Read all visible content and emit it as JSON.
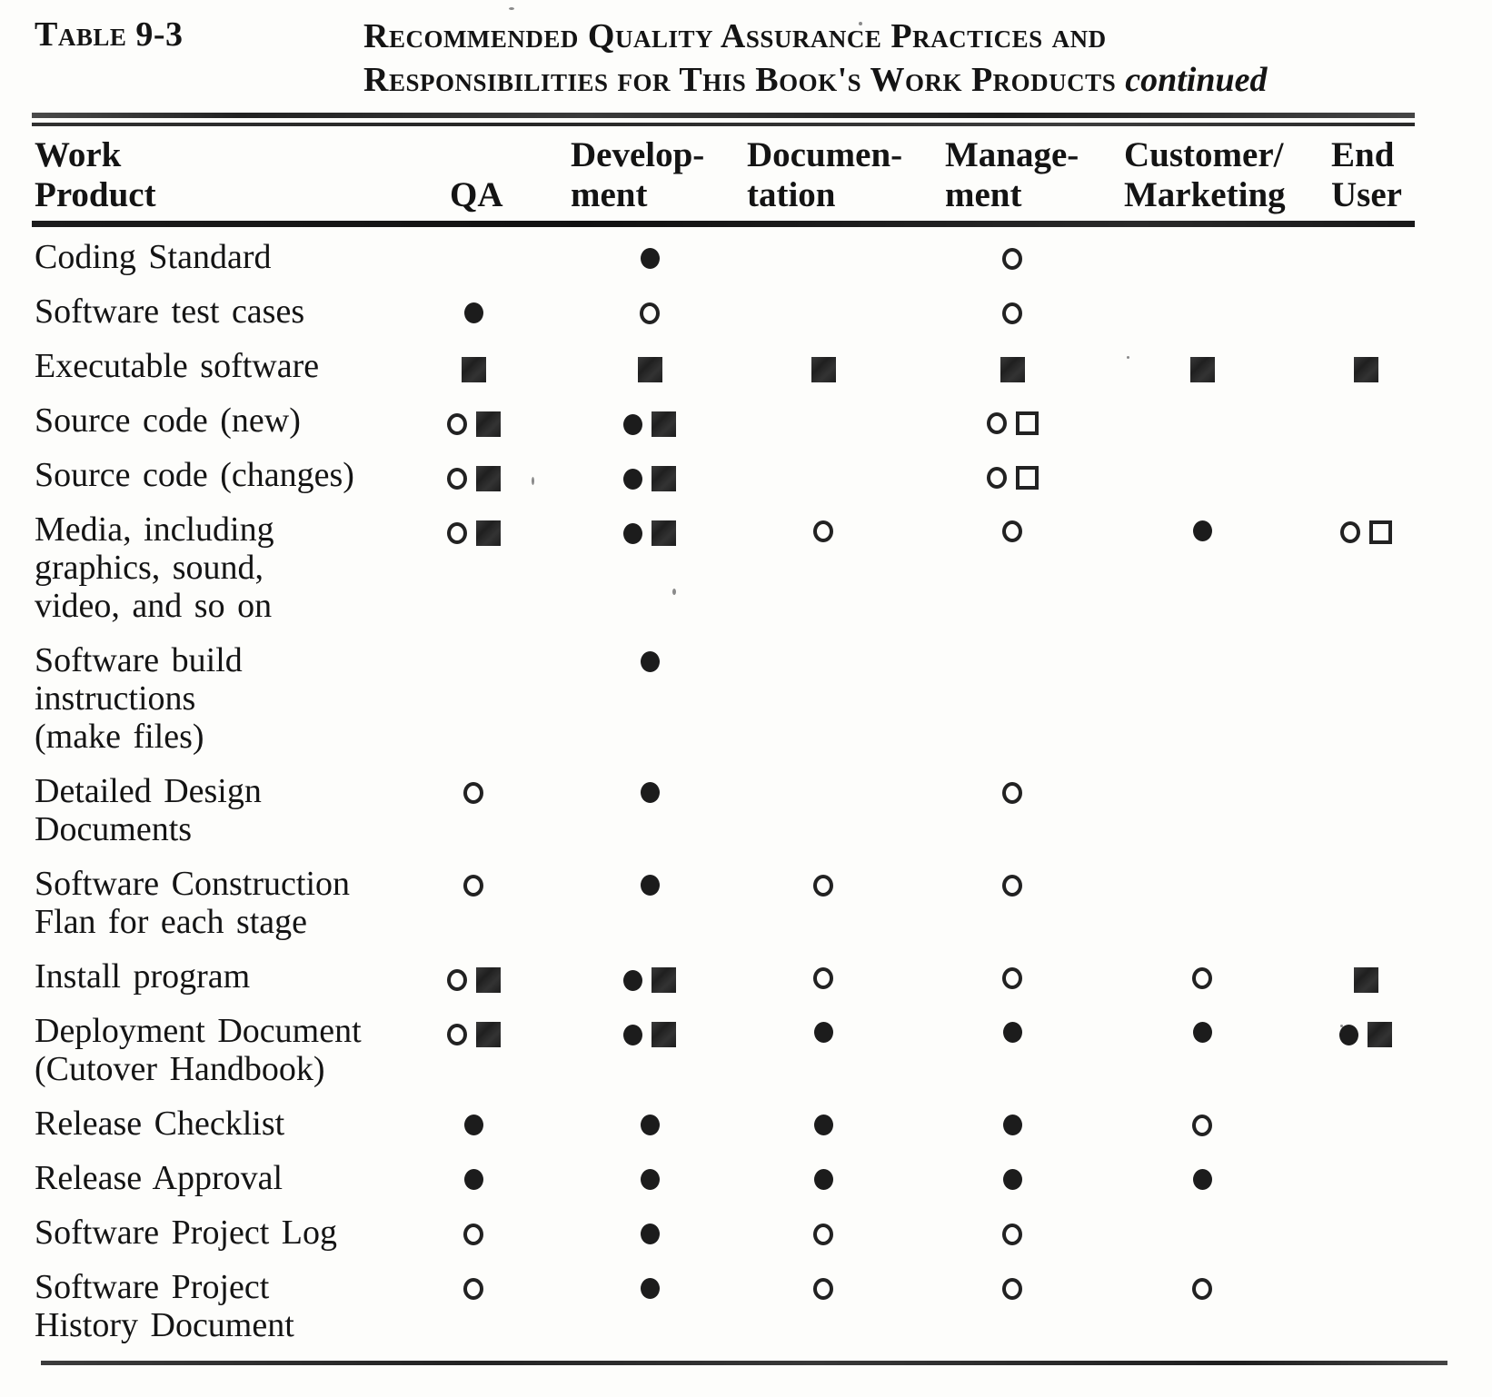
{
  "header": {
    "table_label": "Table 9-3",
    "title_line1": "Recommended Quality Assurance Practices and",
    "title_line2": "Responsibilities for This Book's Work Products",
    "continued_label": "continued"
  },
  "columns": [
    {
      "id": "work-product",
      "lines": [
        "Work",
        "Product"
      ]
    },
    {
      "id": "qa",
      "lines": [
        "QA"
      ]
    },
    {
      "id": "development",
      "lines": [
        "Develop-",
        "ment"
      ]
    },
    {
      "id": "documentation",
      "lines": [
        "Documen-",
        "tation"
      ]
    },
    {
      "id": "management",
      "lines": [
        "Manage-",
        "ment"
      ]
    },
    {
      "id": "customer-marketing",
      "lines": [
        "Customer/",
        "Marketing"
      ]
    },
    {
      "id": "end-user",
      "lines": [
        "End",
        "User"
      ]
    }
  ],
  "symbols": {
    "filled-circle": "●",
    "open-circle": "○",
    "filled-square": "■",
    "open-square": "□"
  },
  "rows": [
    {
      "product_lines": [
        "Coding Standard"
      ],
      "cells": [
        [],
        [
          "filled-circle"
        ],
        [],
        [
          "open-circle"
        ],
        [],
        []
      ]
    },
    {
      "product_lines": [
        "Software test cases"
      ],
      "cells": [
        [
          "filled-circle"
        ],
        [
          "open-circle"
        ],
        [],
        [
          "open-circle"
        ],
        [],
        []
      ]
    },
    {
      "product_lines": [
        "Executable software"
      ],
      "cells": [
        [
          "filled-square"
        ],
        [
          "filled-square"
        ],
        [
          "filled-square"
        ],
        [
          "filled-square"
        ],
        [
          "filled-square"
        ],
        [
          "filled-square"
        ]
      ]
    },
    {
      "product_lines": [
        "Source code (new)"
      ],
      "cells": [
        [
          "open-circle",
          "filled-square"
        ],
        [
          "filled-circle",
          "filled-square"
        ],
        [],
        [
          "open-circle",
          "open-square"
        ],
        [],
        []
      ]
    },
    {
      "product_lines": [
        "Source code (changes)"
      ],
      "cells": [
        [
          "open-circle",
          "filled-square"
        ],
        [
          "filled-circle",
          "filled-square"
        ],
        [],
        [
          "open-circle",
          "open-square"
        ],
        [],
        []
      ]
    },
    {
      "product_lines": [
        "Media, including",
        "graphics, sound,",
        "video, and so on"
      ],
      "cells": [
        [
          "open-circle",
          "filled-square"
        ],
        [
          "filled-circle",
          "filled-square"
        ],
        [
          "open-circle"
        ],
        [
          "open-circle"
        ],
        [
          "filled-circle"
        ],
        [
          "open-circle",
          "open-square"
        ]
      ]
    },
    {
      "product_lines": [
        "Software  build",
        "instructions",
        "(make files)"
      ],
      "cells": [
        [],
        [
          "filled-circle"
        ],
        [],
        [],
        [],
        []
      ]
    },
    {
      "product_lines": [
        "Detailed Design",
        "Documents"
      ],
      "cells": [
        [
          "open-circle"
        ],
        [
          "filled-circle"
        ],
        [],
        [
          "open-circle"
        ],
        [],
        []
      ]
    },
    {
      "product_lines": [
        "Software  Construction",
        "Flan for each stage"
      ],
      "cells": [
        [
          "open-circle"
        ],
        [
          "filled-circle"
        ],
        [
          "open-circle"
        ],
        [
          "open-circle"
        ],
        [],
        []
      ]
    },
    {
      "product_lines": [
        "Install program"
      ],
      "cells": [
        [
          "open-circle",
          "filled-square"
        ],
        [
          "filled-circle",
          "filled-square"
        ],
        [
          "open-circle"
        ],
        [
          "open-circle"
        ],
        [
          "open-circle"
        ],
        [
          "filled-square"
        ]
      ]
    },
    {
      "product_lines": [
        "Deployment Document",
        "(Cutover  Handbook)"
      ],
      "cells": [
        [
          "open-circle",
          "filled-square"
        ],
        [
          "filled-circle",
          "filled-square"
        ],
        [
          "filled-circle"
        ],
        [
          "filled-circle"
        ],
        [
          "filled-circle"
        ],
        [
          "filled-circle",
          "filled-square"
        ]
      ]
    },
    {
      "product_lines": [
        "Release  Checklist"
      ],
      "cells": [
        [
          "filled-circle"
        ],
        [
          "filled-circle"
        ],
        [
          "filled-circle"
        ],
        [
          "filled-circle"
        ],
        [
          "open-circle"
        ],
        []
      ]
    },
    {
      "product_lines": [
        "Release  Approval"
      ],
      "cells": [
        [
          "filled-circle"
        ],
        [
          "filled-circle"
        ],
        [
          "filled-circle"
        ],
        [
          "filled-circle"
        ],
        [
          "filled-circle"
        ],
        []
      ]
    },
    {
      "product_lines": [
        "Software Project Log"
      ],
      "cells": [
        [
          "open-circle"
        ],
        [
          "filled-circle"
        ],
        [
          "open-circle"
        ],
        [
          "open-circle"
        ],
        [],
        []
      ]
    },
    {
      "product_lines": [
        "Software Project",
        "History Document"
      ],
      "cells": [
        [
          "open-circle"
        ],
        [
          "filled-circle"
        ],
        [
          "open-circle"
        ],
        [
          "open-circle"
        ],
        [
          "open-circle"
        ],
        []
      ]
    }
  ],
  "colors": {
    "ink": "#141414",
    "paper": "#fdfdfb"
  }
}
